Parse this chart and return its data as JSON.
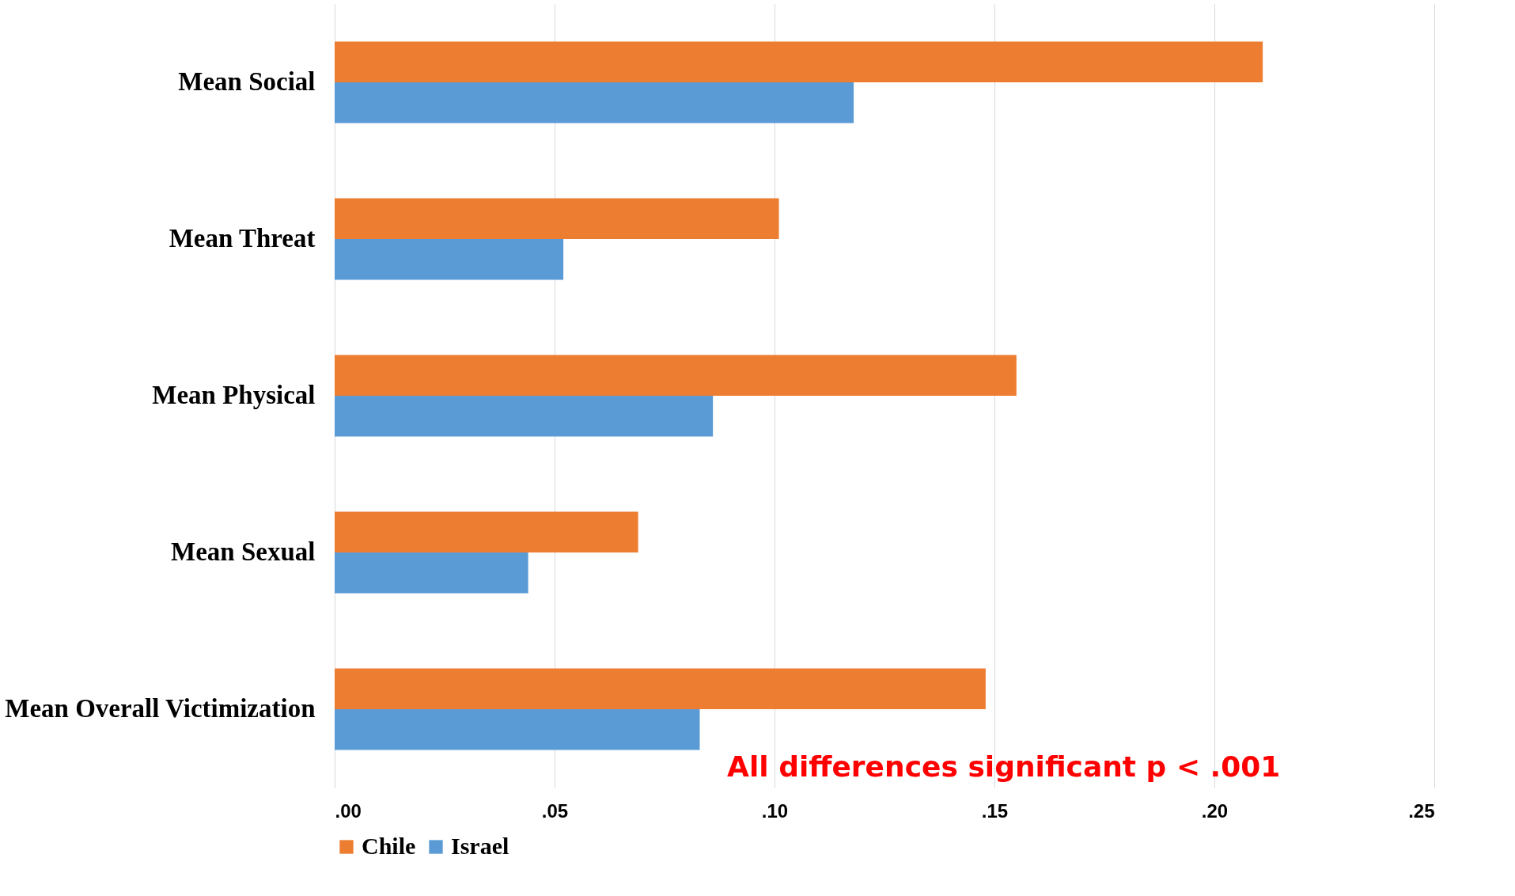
{
  "chart_data": {
    "type": "bar",
    "orientation": "horizontal",
    "categories": [
      "Mean Social",
      "Mean Threat",
      "Mean Physical",
      "Mean Sexual",
      "Mean Overall Victimization"
    ],
    "series": [
      {
        "name": "Chile",
        "color": "#ed7d31",
        "values": [
          0.211,
          0.101,
          0.155,
          0.069,
          0.148
        ]
      },
      {
        "name": "Israel",
        "color": "#5b9bd5",
        "values": [
          0.118,
          0.052,
          0.086,
          0.044,
          0.083
        ]
      }
    ],
    "xlim": [
      0,
      0.25
    ],
    "xticks": [
      {
        "value": 0,
        "label": ".00"
      },
      {
        "value": 0.05,
        "label": ".05"
      },
      {
        "value": 0.1,
        "label": ".10"
      },
      {
        "value": 0.15,
        "label": ".15"
      },
      {
        "value": 0.2,
        "label": ".20"
      },
      {
        "value": 0.25,
        "label": ".25"
      }
    ],
    "grid": "x",
    "legend": "bottom",
    "annotations": [
      "All differences significant p < .001"
    ]
  }
}
